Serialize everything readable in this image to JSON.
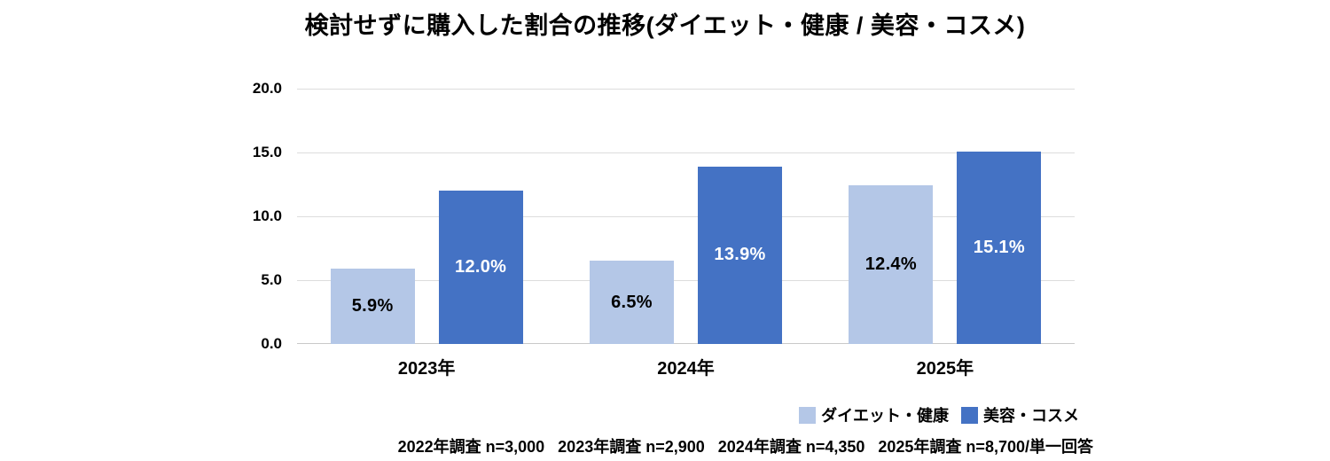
{
  "title": "検討せずに購入した割合の推移(ダイエット・健康 / 美容・コスメ)",
  "colors": {
    "series_light_blue": "#B4C7E7",
    "series_dark_blue": "#4472C4",
    "gridline": "#DDDDDD",
    "baseline": "#C9C9C9",
    "label_on_light": "#000000",
    "label_on_dark": "#FFFFFF"
  },
  "chart_data": {
    "type": "bar",
    "categories": [
      "2023年",
      "2024年",
      "2025年"
    ],
    "series": [
      {
        "name": "ダイエット・健康",
        "color": "#B4C7E7",
        "label_color": "#000000",
        "values": [
          5.9,
          6.5,
          12.4
        ],
        "labels": [
          "5.9%",
          "6.5%",
          "12.4%"
        ]
      },
      {
        "name": "美容・コスメ",
        "color": "#4472C4",
        "label_color": "#FFFFFF",
        "values": [
          12.0,
          13.9,
          15.1
        ],
        "labels": [
          "12.0%",
          "13.9%",
          "15.1%"
        ]
      }
    ],
    "ylim": [
      0,
      20
    ],
    "yticks": [
      {
        "value": 0,
        "label": "0.0"
      },
      {
        "value": 5,
        "label": "5.0"
      },
      {
        "value": 10,
        "label": "10.0"
      },
      {
        "value": 15,
        "label": "15.0"
      },
      {
        "value": 20,
        "label": "20.0"
      }
    ],
    "grid": true,
    "legend_position": "bottom-right",
    "label_position": "inside-center"
  },
  "footer": {
    "notes": [
      "2022年調査 n=3,000",
      "2023年調査 n=2,900",
      "2024年調査 n=4,350",
      "2025年調査 n=8,700/単一回答"
    ]
  }
}
